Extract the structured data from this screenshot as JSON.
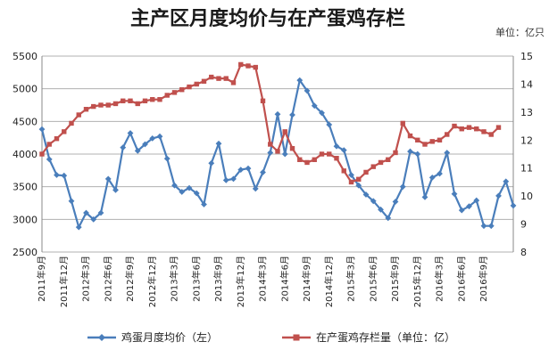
{
  "chart_data": {
    "type": "line",
    "title": "主产区月度均价与在产蛋鸡存栏",
    "right_axis_unit": "单位：亿只",
    "left_axis": {
      "min": 2500,
      "max": 5500,
      "step": 500,
      "ticks": [
        "2500",
        "3000",
        "3500",
        "4000",
        "4500",
        "5000",
        "5500"
      ]
    },
    "right_axis": {
      "min": 8,
      "max": 15,
      "step": 1,
      "ticks": [
        "8",
        "9",
        "10",
        "11",
        "12",
        "13",
        "14",
        "15"
      ]
    },
    "x_tick_labels": [
      {
        "i": 0,
        "label": "2011年9月"
      },
      {
        "i": 3,
        "label": "2011年12月"
      },
      {
        "i": 6,
        "label": "2012年3月"
      },
      {
        "i": 9,
        "label": "2012年6月"
      },
      {
        "i": 12,
        "label": "2012年9月"
      },
      {
        "i": 15,
        "label": "2012年12月"
      },
      {
        "i": 18,
        "label": "2013年3月"
      },
      {
        "i": 21,
        "label": "2013年6月"
      },
      {
        "i": 24,
        "label": "2013年9月"
      },
      {
        "i": 27,
        "label": "2013年12月"
      },
      {
        "i": 30,
        "label": "2014年3月"
      },
      {
        "i": 33,
        "label": "2014年6月"
      },
      {
        "i": 36,
        "label": "2014年9月"
      },
      {
        "i": 39,
        "label": "2014年12月"
      },
      {
        "i": 42,
        "label": "2015年3月"
      },
      {
        "i": 45,
        "label": "2015年6月"
      },
      {
        "i": 48,
        "label": "2015年9月"
      },
      {
        "i": 51,
        "label": "2015年12月"
      },
      {
        "i": 54,
        "label": "2016年3月"
      },
      {
        "i": 57,
        "label": "2016年6月"
      },
      {
        "i": 60,
        "label": "2016年9月"
      }
    ],
    "series": [
      {
        "name": "鸡蛋月度均价（左）",
        "axis": "left",
        "color": "#4a7ebb",
        "marker": "diamond",
        "values": [
          4380,
          3920,
          3680,
          3670,
          3280,
          2880,
          3100,
          3000,
          3100,
          3620,
          3450,
          4100,
          4320,
          4050,
          4150,
          4240,
          4270,
          3930,
          3520,
          3420,
          3480,
          3400,
          3230,
          3860,
          4160,
          3600,
          3620,
          3760,
          3780,
          3470,
          3720,
          4020,
          4610,
          4000,
          4600,
          5130,
          4970,
          4740,
          4630,
          4450,
          4120,
          4060,
          3680,
          3520,
          3380,
          3280,
          3150,
          3020,
          3270,
          3500,
          4040,
          4000,
          3340,
          3640,
          3700,
          4020,
          3390,
          3140,
          3200,
          3290,
          2900,
          2900,
          3360,
          3580,
          3210
        ]
      },
      {
        "name": "在产蛋鸡存栏量（单位：亿）",
        "axis": "right",
        "color": "#c0504d",
        "marker": "square",
        "values": [
          11.5,
          11.85,
          12.05,
          12.3,
          12.6,
          12.9,
          13.1,
          13.2,
          13.25,
          13.25,
          13.3,
          13.4,
          13.4,
          13.3,
          13.4,
          13.45,
          13.45,
          13.6,
          13.7,
          13.8,
          13.9,
          14.0,
          14.1,
          14.25,
          14.2,
          14.2,
          14.05,
          14.7,
          14.65,
          14.6,
          13.4,
          11.85,
          11.6,
          12.3,
          11.7,
          11.3,
          11.2,
          11.3,
          11.5,
          11.5,
          11.35,
          10.9,
          10.5,
          10.6,
          10.85,
          11.05,
          11.2,
          11.3,
          11.55,
          12.6,
          12.15,
          12.0,
          11.85,
          11.95,
          12.0,
          12.2,
          12.5,
          12.4,
          12.45,
          12.4,
          12.3,
          12.2,
          12.45
        ]
      }
    ],
    "grid": "horizontal",
    "legend": "bottom"
  }
}
